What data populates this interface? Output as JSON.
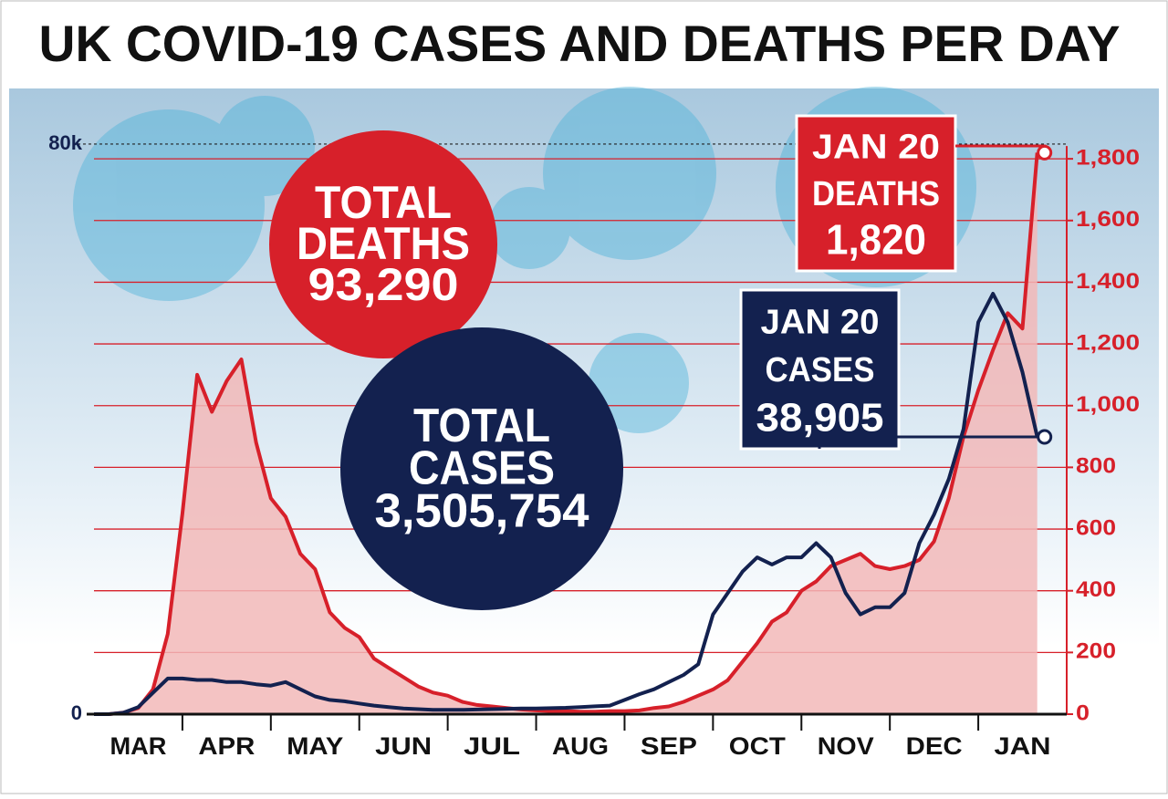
{
  "chart_data": {
    "type": "line",
    "title": "UK COVID-19 CASES AND DEATHS PER DAY",
    "categories": [
      "MAR",
      null,
      null,
      null,
      null,
      null,
      "APR",
      null,
      null,
      null,
      null,
      null,
      "MAY",
      null,
      null,
      null,
      null,
      null,
      "JUN",
      null,
      null,
      null,
      null,
      null,
      "JUL",
      null,
      null,
      null,
      null,
      null,
      "AUG",
      null,
      null,
      null,
      null,
      null,
      "SEP",
      null,
      null,
      null,
      null,
      null,
      "OCT",
      null,
      null,
      null,
      null,
      null,
      "NOV",
      null,
      null,
      null,
      null,
      null,
      "DEC",
      null,
      null,
      null,
      null,
      null,
      "JAN",
      null,
      null,
      null,
      null,
      null
    ],
    "series": [
      {
        "name": "Deaths",
        "color": "#d7202a",
        "axis": "y2",
        "area_color": "#f2b8b8",
        "values": [
          0,
          0,
          5,
          20,
          80,
          260,
          650,
          1100,
          980,
          1080,
          1150,
          880,
          700,
          640,
          520,
          470,
          330,
          280,
          250,
          180,
          150,
          120,
          90,
          70,
          60,
          40,
          30,
          25,
          20,
          15,
          12,
          10,
          10,
          8,
          8,
          10,
          10,
          12,
          20,
          25,
          40,
          60,
          80,
          110,
          170,
          230,
          300,
          330,
          400,
          430,
          480,
          500,
          520,
          480,
          470,
          480,
          500,
          560,
          700,
          900,
          1050,
          1180,
          1300,
          1250,
          1820,
          null
        ]
      },
      {
        "name": "Cases",
        "color": "#13214f",
        "values": [
          0,
          0,
          200,
          1000,
          3000,
          5000,
          5000,
          4800,
          4800,
          4500,
          4500,
          4200,
          4000,
          4500,
          3500,
          2500,
          2000,
          1800,
          1500,
          1200,
          1000,
          800,
          700,
          600,
          600,
          600,
          650,
          700,
          750,
          800,
          800,
          850,
          900,
          1000,
          1100,
          1200,
          2000,
          2800,
          3500,
          4500,
          5500,
          7000,
          14000,
          17000,
          20000,
          22000,
          21000,
          22000,
          22000,
          24000,
          22000,
          17000,
          14000,
          15000,
          15000,
          17000,
          24000,
          28000,
          33000,
          40000,
          55000,
          59000,
          55000,
          48000,
          38905,
          null
        ]
      }
    ],
    "ylim": [
      0,
      87800
    ],
    "yticks": [
      0,
      {
        "value": 80000,
        "label": "80k"
      }
    ],
    "y2lim": [
      0,
      2028
    ],
    "y2ticks": [
      0,
      200,
      400,
      600,
      800,
      {
        "value": 1000,
        "label": "1,000"
      },
      {
        "value": 1200,
        "label": "1,200"
      },
      {
        "value": 1400,
        "label": "1,400"
      },
      {
        "value": 1600,
        "label": "1,600"
      },
      {
        "value": 1800,
        "label": "1,800"
      }
    ],
    "annotations": [
      {
        "lines": [
          "TOTAL",
          "DEATHS",
          "93,290"
        ],
        "color": "#d7202a"
      },
      {
        "lines": [
          "TOTAL",
          "CASES",
          "3,505,754"
        ],
        "color": "#13214f"
      },
      {
        "lines": [
          "JAN 20",
          "DEATHS",
          "1,820"
        ],
        "color": "#d7202a"
      },
      {
        "lines": [
          "JAN 20",
          "CASES",
          "38,905"
        ],
        "color": "#13214f"
      }
    ]
  }
}
